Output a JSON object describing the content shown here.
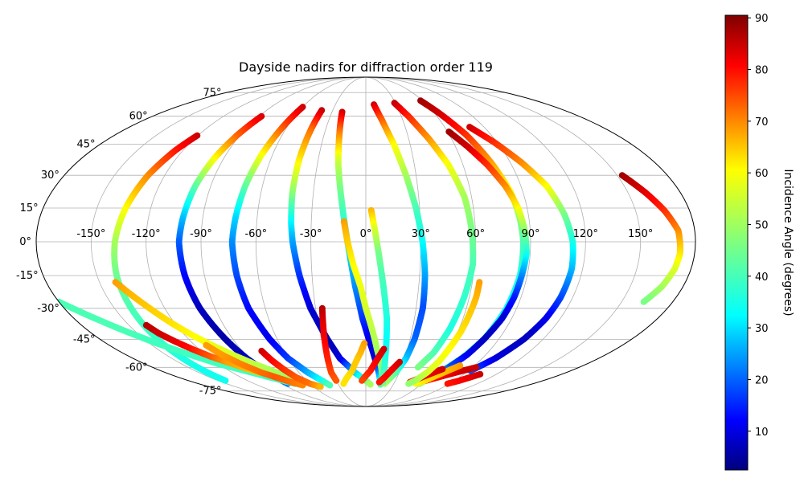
{
  "chart_data": {
    "type": "scatter",
    "projection": "mollweide",
    "title": "Dayside nadirs for diffraction order 119",
    "x_unit": "longitude (degrees)",
    "y_unit": "latitude (degrees)",
    "lon_ticks": [
      -150,
      -120,
      -90,
      -60,
      -30,
      0,
      30,
      60,
      90,
      120,
      150
    ],
    "lat_ticks": [
      -75,
      -60,
      -45,
      -30,
      -15,
      0,
      15,
      30,
      45,
      60,
      75
    ],
    "lon_tick_labels": [
      "-150°",
      "-120°",
      "-90°",
      "-60°",
      "-30°",
      "0°",
      "30°",
      "60°",
      "90°",
      "120°",
      "150°"
    ],
    "lat_tick_labels": [
      "-75°",
      "-60°",
      "-45°",
      "-30°",
      "-15°",
      "0°",
      "15°",
      "30°",
      "45°",
      "60°",
      "75°"
    ],
    "grid": true,
    "colorbar": {
      "label": "Incidence Angle (degrees)",
      "range": [
        2.5,
        90.5
      ],
      "ticks": [
        10,
        20,
        30,
        40,
        50,
        60,
        70,
        80,
        90
      ],
      "tick_labels": [
        "10",
        "20",
        "30",
        "40",
        "50",
        "60",
        "70",
        "80",
        "90"
      ],
      "colormap": "jet",
      "position": "right"
    },
    "tracks": [
      {
        "lat": [
          49.5,
          42,
          30,
          15,
          0,
          -15,
          -30,
          -45,
          -55,
          -62,
          -68
        ],
        "lon": [
          -120.5,
          -125,
          -130,
          -134,
          -137,
          -139,
          -140,
          -141,
          -141.5,
          -142,
          -142.5
        ],
        "inc": [
          84,
          78,
          68,
          58,
          50,
          45,
          42,
          40,
          38,
          37,
          37
        ]
      },
      {
        "lat": [
          60,
          50,
          38,
          25,
          10,
          0,
          -15,
          -30,
          -45,
          -55,
          -63,
          -70
        ],
        "lon": [
          -88,
          -92,
          -96,
          -99,
          -101,
          -102,
          -101,
          -99,
          -95,
          -92,
          -88,
          -84
        ],
        "inc": [
          83,
          72,
          58,
          44,
          30,
          22,
          14,
          8,
          6,
          8,
          14,
          24
        ]
      },
      {
        "lat": [
          65.5,
          55,
          40,
          25,
          10,
          0,
          -15,
          -30,
          -45,
          -55,
          -63,
          -71
        ],
        "lon": [
          -60,
          -63,
          -67,
          -70,
          -72,
          -73,
          -72,
          -70,
          -65,
          -60,
          -52,
          -40
        ],
        "inc": [
          84,
          74,
          58,
          44,
          32,
          26,
          20,
          14,
          12,
          18,
          28,
          42
        ]
      },
      {
        "lat": [
          63.5,
          52,
          38,
          22,
          8,
          0,
          -15,
          -30,
          -45,
          -55,
          -63,
          -70.5
        ],
        "lon": [
          -40,
          -41,
          -42,
          -42,
          -41,
          -40,
          -37,
          -33,
          -26,
          -20,
          -10,
          5
        ],
        "inc": [
          85,
          70,
          60,
          48,
          35,
          28,
          18,
          10,
          6,
          10,
          30,
          50
        ]
      },
      {
        "lat": [
          62.5,
          50,
          35,
          20,
          5,
          -5,
          -20,
          -35,
          -45,
          -55,
          -62,
          -70.5
        ],
        "lon": [
          -21,
          -19,
          -17,
          -14,
          -11,
          -9,
          -6,
          -2,
          2,
          7,
          11,
          16
        ],
        "inc": [
          84,
          68,
          52,
          44,
          38,
          33,
          26,
          18,
          12,
          10,
          22,
          42
        ]
      },
      {
        "lat": [
          67,
          58,
          45,
          30,
          15,
          0,
          -15,
          -30,
          -45,
          -55,
          -63,
          -70
        ],
        "lon": [
          8,
          13,
          19,
          24,
          28,
          31,
          33,
          34,
          33,
          31,
          27,
          20
        ],
        "inc": [
          84,
          72,
          58,
          50,
          42,
          36,
          28,
          20,
          22,
          30,
          42,
          50
        ]
      },
      {
        "lat": [
          68,
          60,
          48,
          35,
          20,
          5,
          -10,
          -25,
          -40,
          -52,
          -60
        ],
        "lon": [
          29,
          36,
          44,
          51,
          56,
          58,
          59,
          57,
          54,
          50,
          44
        ],
        "inc": [
          85,
          77,
          67,
          57,
          50,
          46,
          42,
          40,
          38,
          42,
          46
        ]
      },
      {
        "lat": [
          69.5,
          62,
          50,
          36,
          22,
          10,
          0,
          -15,
          -30,
          -45,
          -55,
          -62,
          -70
        ],
        "lon": [
          58,
          64,
          72,
          78,
          83,
          85,
          86,
          86,
          84,
          80,
          74,
          67,
          58
        ],
        "inc": [
          88,
          84,
          76,
          66,
          56,
          48,
          42,
          38,
          36,
          38,
          42,
          46,
          50
        ]
      },
      {
        "lat": [
          51.5,
          44,
          35,
          25,
          15,
          5,
          -5,
          -15,
          -25,
          -35,
          -45,
          -53,
          -60,
          -65,
          -70
        ],
        "lon": [
          61,
          68,
          75,
          81,
          85,
          87,
          88,
          87,
          86,
          84,
          80,
          76,
          70,
          64,
          56
        ],
        "inc": [
          88,
          84,
          76,
          68,
          58,
          48,
          38,
          26,
          16,
          10,
          8,
          12,
          20,
          32,
          44
        ]
      },
      {
        "lat": [
          54,
          46,
          36,
          25,
          12,
          0,
          -12,
          -25,
          -35,
          -45,
          -55,
          -62
        ],
        "lon": [
          79,
          88,
          97,
          105,
          110,
          113,
          114,
          113,
          111,
          107,
          100,
          92
        ],
        "inc": [
          84,
          76,
          68,
          58,
          46,
          38,
          30,
          20,
          12,
          8,
          10,
          20
        ]
      },
      {
        "lat": [
          30,
          22,
          14,
          5,
          -5,
          -12,
          -20,
          -27
        ],
        "lon": [
          153,
          160,
          166,
          171,
          172,
          171,
          168,
          163
        ],
        "inc": [
          88,
          82,
          76,
          68,
          60,
          55,
          50,
          46
        ]
      },
      {
        "lat": [
          -18,
          -23,
          -30,
          -37,
          -43,
          -48,
          -53,
          -58,
          -63,
          -68
        ],
        "lon": [
          -141,
          -136,
          -129,
          -122,
          -115,
          -108,
          -100,
          -91,
          -80,
          -66
        ],
        "inc": [
          66,
          64,
          62,
          60,
          58,
          56,
          54,
          52,
          50,
          48
        ]
      },
      {
        "lat": [
          -27,
          -33,
          -40,
          -47,
          -53,
          -58,
          -62,
          -66,
          -70
        ],
        "lon": [
          -180,
          -170,
          -158,
          -145,
          -132,
          -120,
          -106,
          -92,
          -76
        ],
        "inc": [
          42,
          42,
          42,
          41,
          41,
          41,
          41,
          41,
          41
        ]
      },
      {
        "lat": [
          -38,
          -42,
          -46,
          -50,
          -54,
          -57,
          -60,
          -63
        ],
        "lon": [
          -139,
          -136,
          -131,
          -125,
          -118,
          -111,
          -104,
          -96
        ],
        "inc": [
          86,
          84,
          82,
          78,
          72,
          66,
          64,
          62
        ]
      },
      {
        "lat": [
          -48,
          -53,
          -58,
          -63,
          -66,
          -69,
          -71
        ],
        "lon": [
          -112,
          -108,
          -102,
          -94,
          -86,
          -78,
          -70
        ],
        "inc": [
          66,
          66,
          68,
          70,
          72,
          70,
          68
        ]
      },
      {
        "lat": [
          -51,
          -56,
          -61,
          -66,
          -70,
          -72
        ],
        "lon": [
          -76,
          -74,
          -71,
          -67,
          -60,
          -52
        ],
        "inc": [
          84,
          80,
          76,
          72,
          70,
          64
        ]
      },
      {
        "lat": [
          -30,
          -38,
          -45,
          -52,
          -58,
          -63,
          -68
        ],
        "lon": [
          -26,
          -27,
          -28,
          -29,
          -30,
          -31,
          -30
        ],
        "inc": [
          86,
          82,
          80,
          78,
          76,
          74,
          72
        ]
      },
      {
        "lat": [
          9,
          0,
          -10,
          -20,
          -30,
          -40,
          -50,
          -58,
          -64,
          -69
        ],
        "lon": [
          -12,
          -10,
          -7,
          -3,
          0,
          4,
          8,
          12,
          15,
          18
        ],
        "inc": [
          66,
          62,
          58,
          56,
          54,
          52,
          50,
          48,
          46,
          44
        ]
      },
      {
        "lat": [
          14,
          5,
          -5,
          -15,
          -25,
          -35,
          -45,
          -55,
          -62,
          -68
        ],
        "lon": [
          3,
          5,
          7,
          9,
          11,
          13,
          14,
          15,
          16,
          16
        ],
        "inc": [
          64,
          54,
          46,
          42,
          40,
          38,
          36,
          38,
          40,
          44
        ]
      },
      {
        "lat": [
          -47,
          -52,
          -57,
          -62,
          -66,
          -70
        ],
        "lon": [
          -1,
          -4,
          -8,
          -12,
          -18,
          -24
        ],
        "inc": [
          66,
          64,
          62,
          62,
          60,
          60
        ]
      },
      {
        "lat": [
          -50,
          -54,
          -58,
          -62,
          -65,
          -68
        ],
        "lon": [
          13,
          10,
          7,
          4,
          0,
          -4
        ],
        "inc": [
          84,
          82,
          80,
          78,
          76,
          74
        ]
      },
      {
        "lat": [
          -57,
          -60,
          -63,
          -66,
          -69
        ],
        "lon": [
          27,
          24,
          21,
          18,
          14
        ],
        "inc": [
          84,
          82,
          80,
          80,
          78
        ]
      },
      {
        "lat": [
          -60,
          -62,
          -64,
          -66,
          -68
        ],
        "lon": [
          93,
          85,
          77,
          69,
          61
        ],
        "inc": [
          84,
          84,
          82,
          80,
          78
        ]
      },
      {
        "lat": [
          -59,
          -62,
          -65,
          -68,
          -70
        ],
        "lon": [
          78,
          72,
          66,
          60,
          54
        ],
        "inc": [
          66,
          64,
          62,
          60,
          58
        ]
      },
      {
        "lat": [
          -61,
          -63,
          -65,
          -67,
          -69
        ],
        "lon": [
          66,
          61,
          56,
          51,
          46
        ],
        "inc": [
          84,
          82,
          82,
          80,
          80
        ]
      },
      {
        "lat": [
          -18,
          -25,
          -33,
          -41,
          -49,
          -57,
          -63,
          -68,
          -70
        ],
        "lon": [
          64,
          64,
          63,
          62,
          60,
          58,
          55,
          50,
          46
        ],
        "inc": [
          66,
          64,
          62,
          60,
          58,
          56,
          54,
          50,
          48
        ]
      },
      {
        "lat": [
          -64,
          -66,
          -68,
          -70
        ],
        "lon": [
          105,
          100,
          95,
          88
        ],
        "inc": [
          84,
          82,
          80,
          78
        ]
      }
    ]
  }
}
